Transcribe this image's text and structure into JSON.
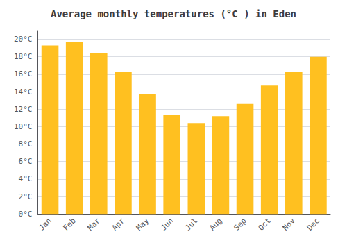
{
  "chart_data": {
    "type": "bar",
    "title": "Average monthly temperatures (°C ) in Eden",
    "categories": [
      "Jan",
      "Feb",
      "Mar",
      "Apr",
      "May",
      "Jun",
      "Jul",
      "Aug",
      "Sep",
      "Oct",
      "Nov",
      "Dec"
    ],
    "values": [
      19.3,
      19.7,
      18.4,
      16.3,
      13.7,
      11.3,
      10.4,
      11.2,
      12.6,
      14.7,
      16.3,
      18.0
    ],
    "color": "#FFC020",
    "ylim": [
      0,
      21
    ],
    "yticks": [
      {
        "value": 0,
        "label": "0°C"
      },
      {
        "value": 2,
        "label": "2°C"
      },
      {
        "value": 4,
        "label": "4°C"
      },
      {
        "value": 6,
        "label": "6°C"
      },
      {
        "value": 8,
        "label": "8°C"
      },
      {
        "value": 10,
        "label": "10°C"
      },
      {
        "value": 12,
        "label": "12°C"
      },
      {
        "value": 14,
        "label": "14°C"
      },
      {
        "value": 16,
        "label": "16°C"
      },
      {
        "value": 18,
        "label": "18°C"
      },
      {
        "value": 20,
        "label": "20°C"
      }
    ],
    "grid": true
  }
}
